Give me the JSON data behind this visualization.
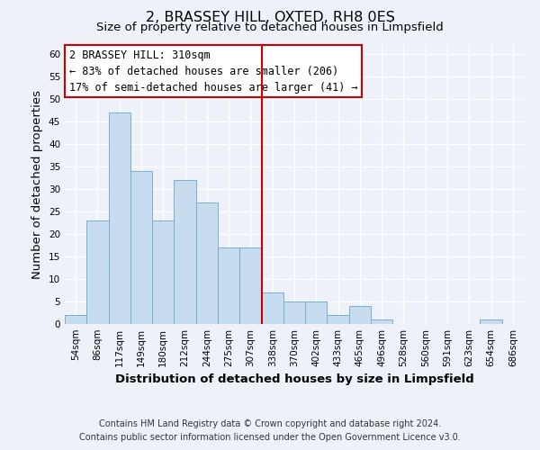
{
  "title": "2, BRASSEY HILL, OXTED, RH8 0ES",
  "subtitle": "Size of property relative to detached houses in Limpsfield",
  "xlabel": "Distribution of detached houses by size in Limpsfield",
  "ylabel": "Number of detached properties",
  "bin_labels": [
    "54sqm",
    "86sqm",
    "117sqm",
    "149sqm",
    "180sqm",
    "212sqm",
    "244sqm",
    "275sqm",
    "307sqm",
    "338sqm",
    "370sqm",
    "402sqm",
    "433sqm",
    "465sqm",
    "496sqm",
    "528sqm",
    "560sqm",
    "591sqm",
    "623sqm",
    "654sqm",
    "686sqm"
  ],
  "bar_heights": [
    2,
    23,
    47,
    34,
    23,
    32,
    27,
    17,
    17,
    7,
    5,
    5,
    2,
    4,
    1,
    0,
    0,
    0,
    0,
    1,
    0
  ],
  "bar_color": "#c8dcf0",
  "bar_edge_color": "#7aaed4",
  "vline_x_idx": 8,
  "vline_color": "#cc0000",
  "annotation_title": "2 BRASSEY HILL: 310sqm",
  "annotation_line1": "← 83% of detached houses are smaller (206)",
  "annotation_line2": "17% of semi-detached houses are larger (41) →",
  "annotation_box_color": "#ffffff",
  "annotation_box_edge": "#cc0000",
  "ylim": [
    0,
    62
  ],
  "yticks": [
    0,
    5,
    10,
    15,
    20,
    25,
    30,
    35,
    40,
    45,
    50,
    55,
    60
  ],
  "footer_line1": "Contains HM Land Registry data © Crown copyright and database right 2024.",
  "footer_line2": "Contains public sector information licensed under the Open Government Licence v3.0.",
  "background_color": "#eef2f8",
  "grid_color": "#ffffff",
  "title_fontsize": 11.5,
  "subtitle_fontsize": 9.5,
  "axis_label_fontsize": 9.5,
  "tick_fontsize": 7.5,
  "annotation_fontsize": 8.5,
  "footer_fontsize": 7
}
